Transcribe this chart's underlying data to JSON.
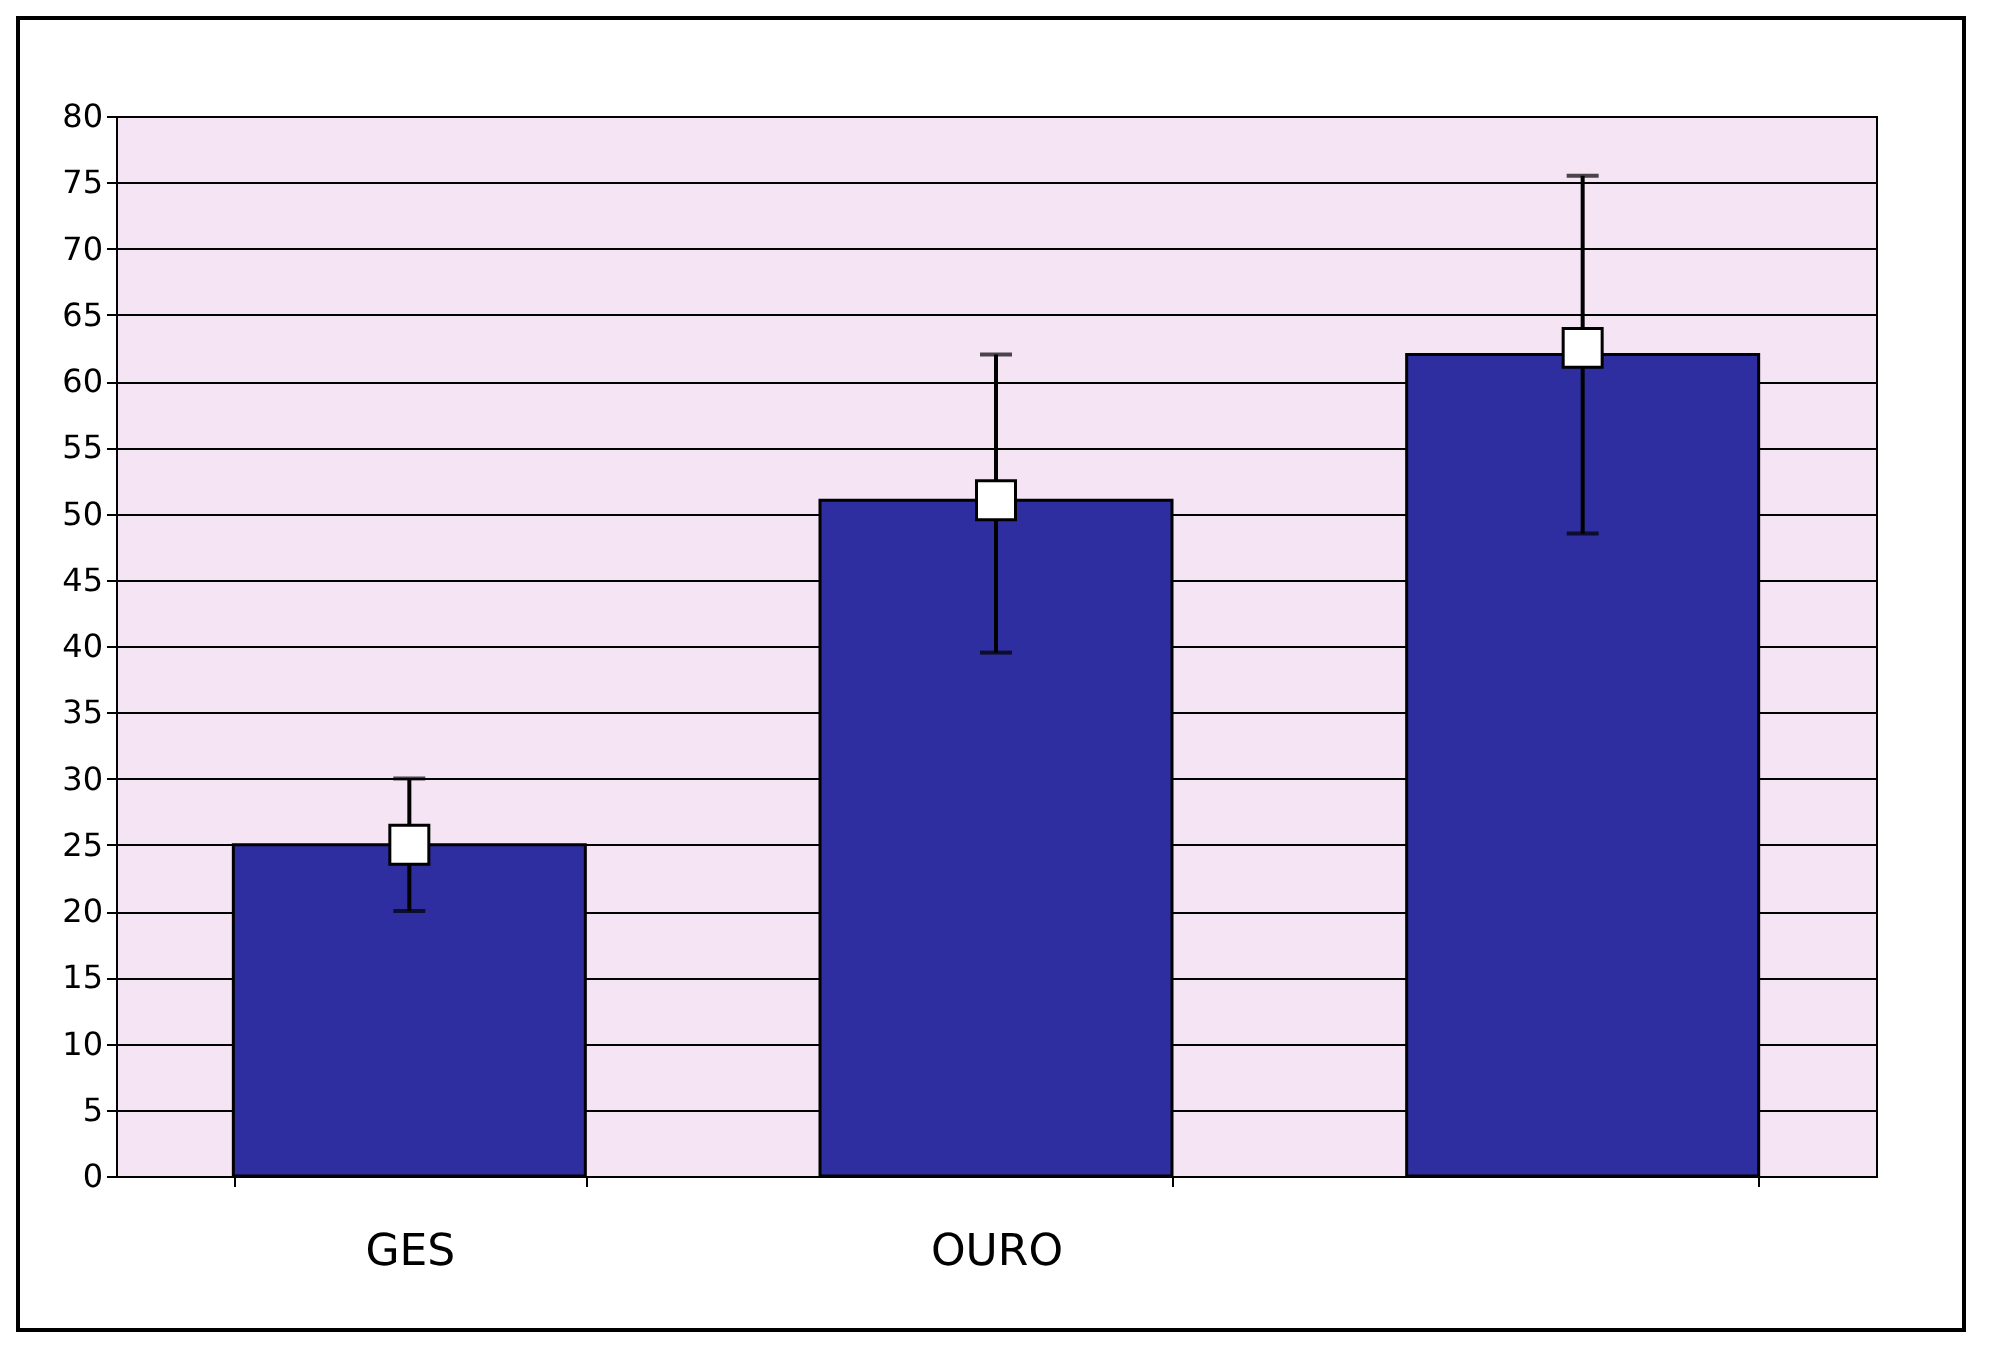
{
  "chart_data": {
    "type": "bar",
    "categories": [
      "GES",
      "OURO",
      null
    ],
    "series": [
      {
        "type": "bar",
        "color": "#2e2ea0",
        "values": [
          25,
          51,
          62
        ]
      },
      {
        "type": "scatter",
        "color": "#ffffff",
        "marker": "square",
        "values": [
          25,
          51,
          62.5
        ],
        "errors": [
          [
            20,
            30
          ],
          [
            39.5,
            62
          ],
          [
            48.5,
            75.5
          ]
        ]
      }
    ],
    "ylim": [
      0,
      80
    ],
    "yticks": [
      0,
      5,
      10,
      15,
      20,
      25,
      30,
      35,
      40,
      45,
      50,
      55,
      60,
      65,
      70,
      75,
      80
    ],
    "grid": "y"
  }
}
